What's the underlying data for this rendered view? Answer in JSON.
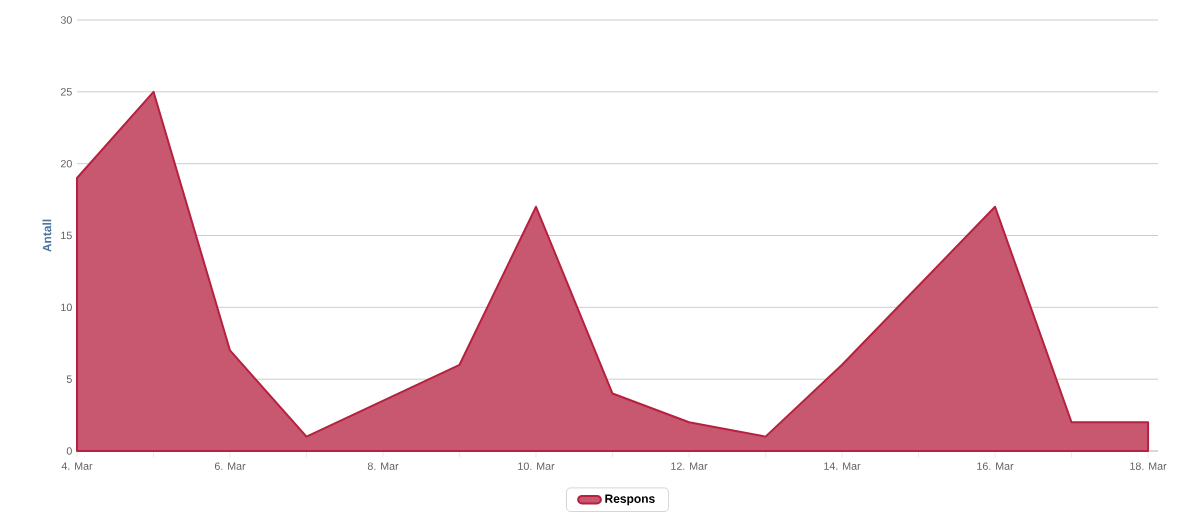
{
  "chart_data": {
    "type": "area",
    "ylabel": "Antall",
    "categories": [
      "4. Mar",
      null,
      "6. Mar",
      null,
      "8. Mar",
      null,
      "10. Mar",
      null,
      "12. Mar",
      null,
      "14. Mar",
      null,
      "16. Mar",
      null,
      "18. Mar"
    ],
    "series": [
      {
        "name": "Respons",
        "color": "#b5213f",
        "values": [
          19,
          25,
          7,
          1,
          3.5,
          6,
          17,
          4,
          2,
          1,
          6,
          11.5,
          17,
          2,
          2
        ]
      }
    ],
    "ylim": [
      0,
      30
    ],
    "yticks": [
      0,
      5,
      10,
      15,
      20,
      25,
      30
    ],
    "grid": "y",
    "legend": "bottom"
  }
}
